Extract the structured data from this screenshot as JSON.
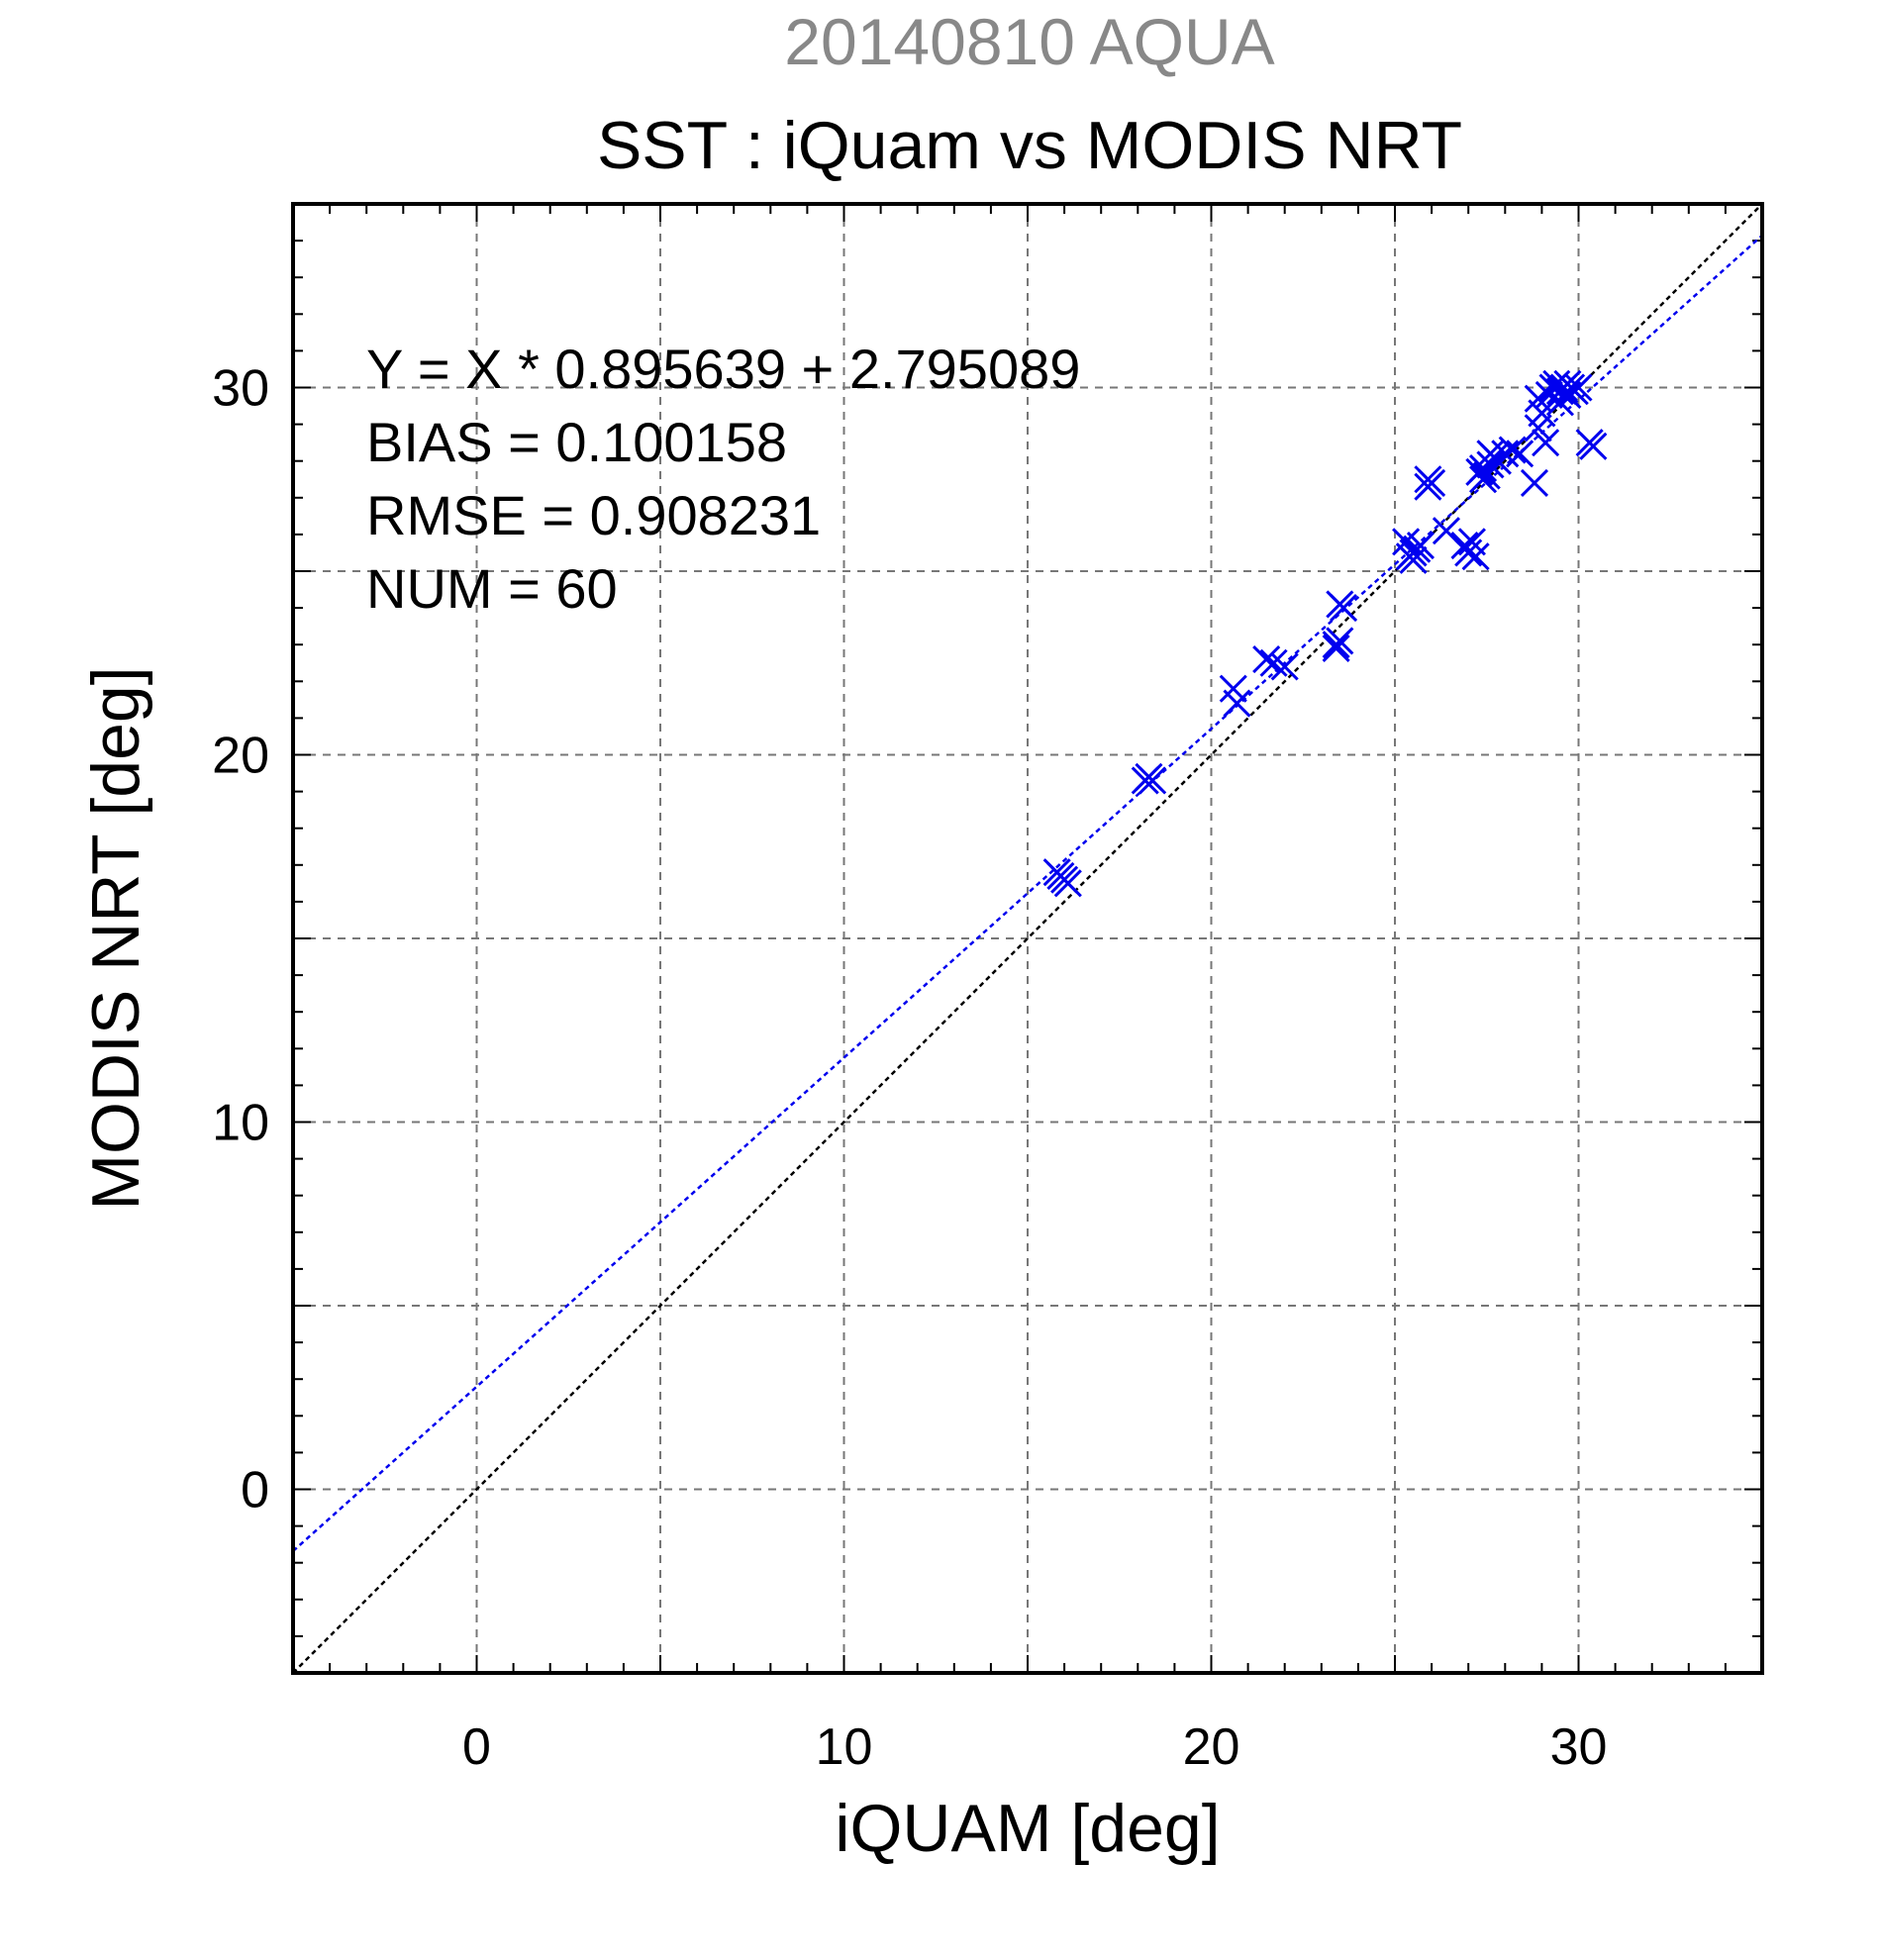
{
  "chart_data": {
    "type": "scatter",
    "supertitle": "20140810 AQUA",
    "title": "SST : iQuam vs MODIS NRT",
    "xlabel": "iQUAM [deg]",
    "ylabel": "MODIS NRT [deg]",
    "xlim": [
      -5,
      35
    ],
    "ylim": [
      -5,
      35
    ],
    "xticks": [
      0,
      10,
      20,
      30
    ],
    "yticks": [
      0,
      10,
      20,
      30
    ],
    "grid": true,
    "marker": "x",
    "marker_color": "#0000ee",
    "fit_color": "#0000ee",
    "identity_color": "#000000",
    "fit": {
      "slope": 0.895639,
      "intercept": 2.795089
    },
    "stats": [
      "Y = X * 0.895639 + 2.795089",
      "BIAS = 0.100158",
      "RMSE = 0.908231",
      "NUM = 60"
    ],
    "points": [
      [
        15.8,
        16.8
      ],
      [
        16.0,
        16.6
      ],
      [
        16.1,
        16.5
      ],
      [
        15.9,
        16.7
      ],
      [
        18.3,
        19.4
      ],
      [
        18.4,
        19.3
      ],
      [
        18.2,
        19.3
      ],
      [
        20.6,
        21.8
      ],
      [
        20.7,
        21.4
      ],
      [
        21.5,
        22.6
      ],
      [
        21.7,
        22.5
      ],
      [
        22.0,
        22.4
      ],
      [
        23.4,
        23.0
      ],
      [
        23.5,
        23.1
      ],
      [
        23.4,
        22.9
      ],
      [
        23.5,
        24.1
      ],
      [
        23.6,
        24.0
      ],
      [
        25.3,
        25.8
      ],
      [
        25.5,
        25.5
      ],
      [
        25.6,
        25.6
      ],
      [
        25.4,
        25.4
      ],
      [
        25.7,
        25.7
      ],
      [
        25.5,
        25.3
      ],
      [
        25.9,
        27.5
      ],
      [
        26.0,
        27.4
      ],
      [
        25.9,
        27.3
      ],
      [
        26.4,
        26.1
      ],
      [
        26.9,
        25.7
      ],
      [
        27.0,
        25.5
      ],
      [
        27.1,
        25.8
      ],
      [
        27.2,
        25.4
      ],
      [
        27.3,
        27.7
      ],
      [
        27.4,
        27.8
      ],
      [
        27.5,
        27.6
      ],
      [
        27.6,
        27.9
      ],
      [
        27.4,
        27.5
      ],
      [
        27.7,
        28.1
      ],
      [
        27.8,
        28.0
      ],
      [
        27.6,
        28.2
      ],
      [
        28.0,
        28.2
      ],
      [
        28.2,
        28.3
      ],
      [
        28.4,
        28.2
      ],
      [
        28.8,
        27.4
      ],
      [
        28.9,
        28.9
      ],
      [
        29.0,
        29.3
      ],
      [
        28.9,
        29.7
      ],
      [
        29.1,
        28.5
      ],
      [
        29.2,
        29.8
      ],
      [
        29.3,
        30.0
      ],
      [
        29.4,
        30.1
      ],
      [
        29.5,
        29.9
      ],
      [
        29.6,
        30.0
      ],
      [
        29.7,
        29.8
      ],
      [
        29.8,
        30.0
      ],
      [
        29.9,
        29.9
      ],
      [
        29.7,
        30.1
      ],
      [
        30.0,
        30.0
      ],
      [
        30.3,
        28.5
      ],
      [
        30.4,
        28.4
      ],
      [
        29.5,
        29.6
      ]
    ]
  }
}
